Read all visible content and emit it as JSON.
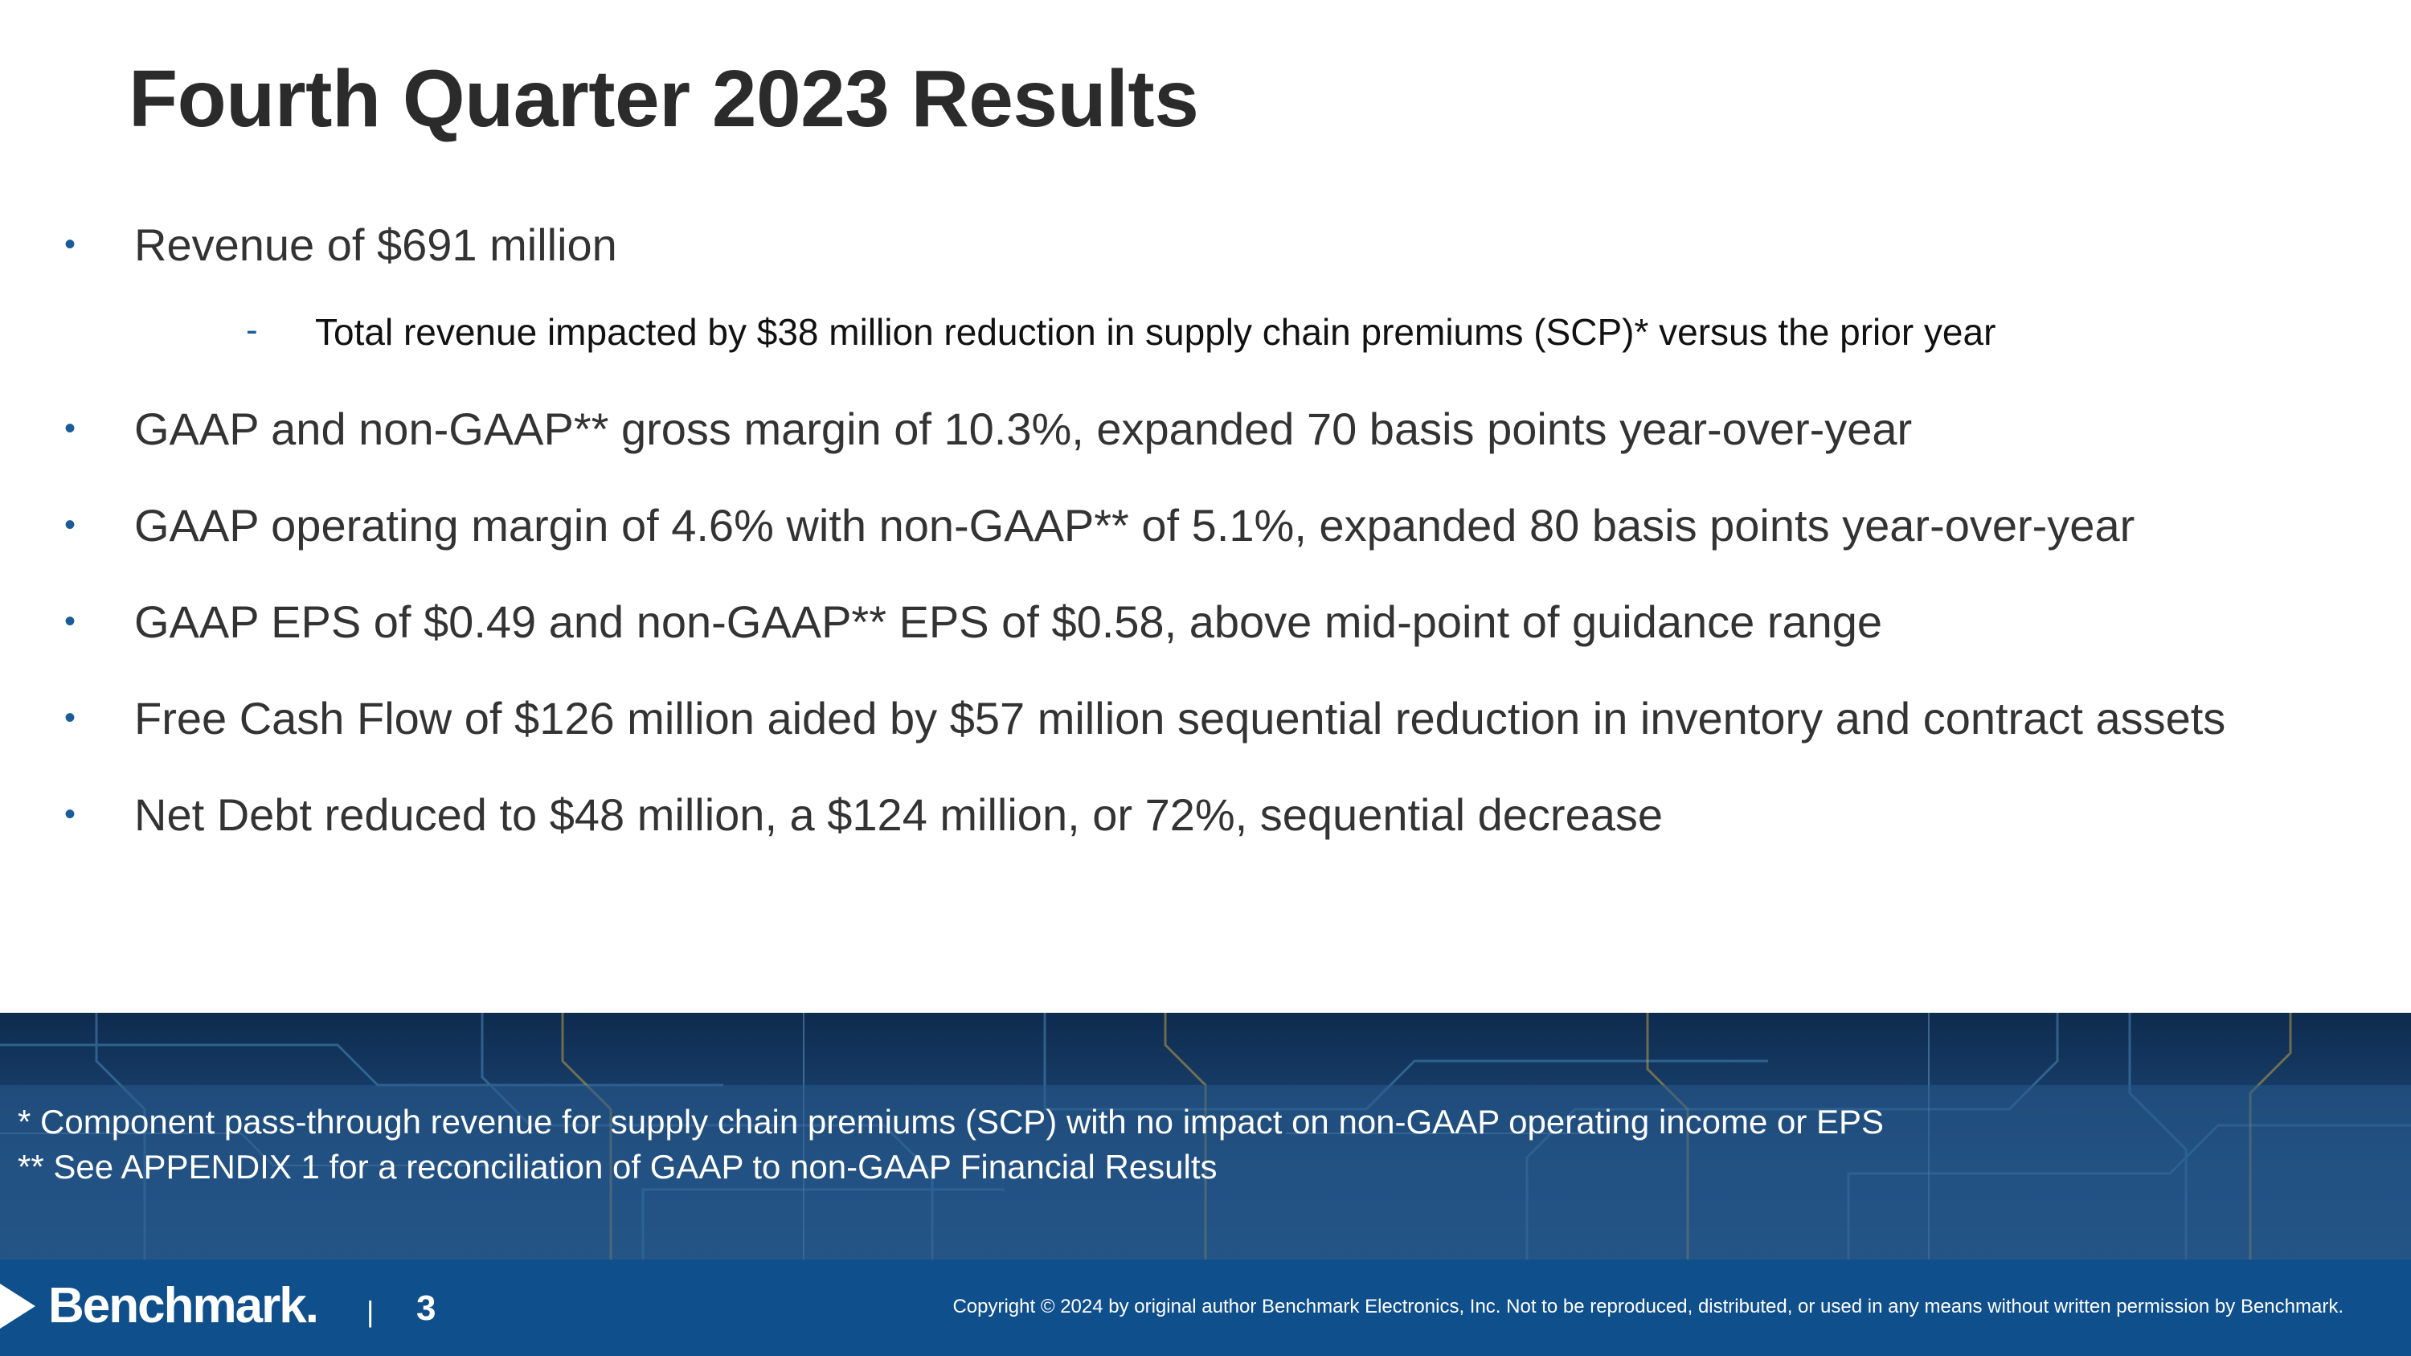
{
  "slide": {
    "title": "Fourth Quarter 2023 Results",
    "bullet_marker": "•",
    "sub_marker": "-",
    "bullets": [
      {
        "text": "Revenue of $691 million"
      },
      {
        "text": "GAAP and non-GAAP** gross margin of 10.3%, expanded 70 basis points year-over-year"
      },
      {
        "text": "GAAP operating margin of 4.6% with non-GAAP** of 5.1%, expanded 80 basis points year-over-year"
      },
      {
        "text": "GAAP EPS of $0.49 and non-GAAP** EPS of $0.58, above mid-point of guidance range"
      },
      {
        "text": "Free Cash Flow of $126 million aided by $57 million sequential reduction in inventory and contract assets"
      },
      {
        "text": "Net Debt reduced to $48 million, a $124 million, or 72%, sequential decrease"
      }
    ],
    "sub_bullet": "Total revenue impacted by $38 million reduction in supply chain premiums (SCP)* versus the prior year"
  },
  "footnotes": {
    "note1": " *  Component pass-through revenue for supply chain premiums (SCP) with no impact on non-GAAP operating income or EPS",
    "note2": "** See APPENDIX 1 for a reconciliation of GAAP to non-GAAP Financial Results"
  },
  "footer": {
    "logo": "Benchmark.",
    "separator": "|",
    "page_number": "3",
    "copyright": "Copyright © 2024 by original author Benchmark Electronics, Inc. Not to be reproduced, distributed, or used in any means without written permission by Benchmark."
  },
  "colors": {
    "accent_blue": "#1a5c9a",
    "footer_blue": "#0f4f8c",
    "title_text": "#2b2b2b"
  }
}
